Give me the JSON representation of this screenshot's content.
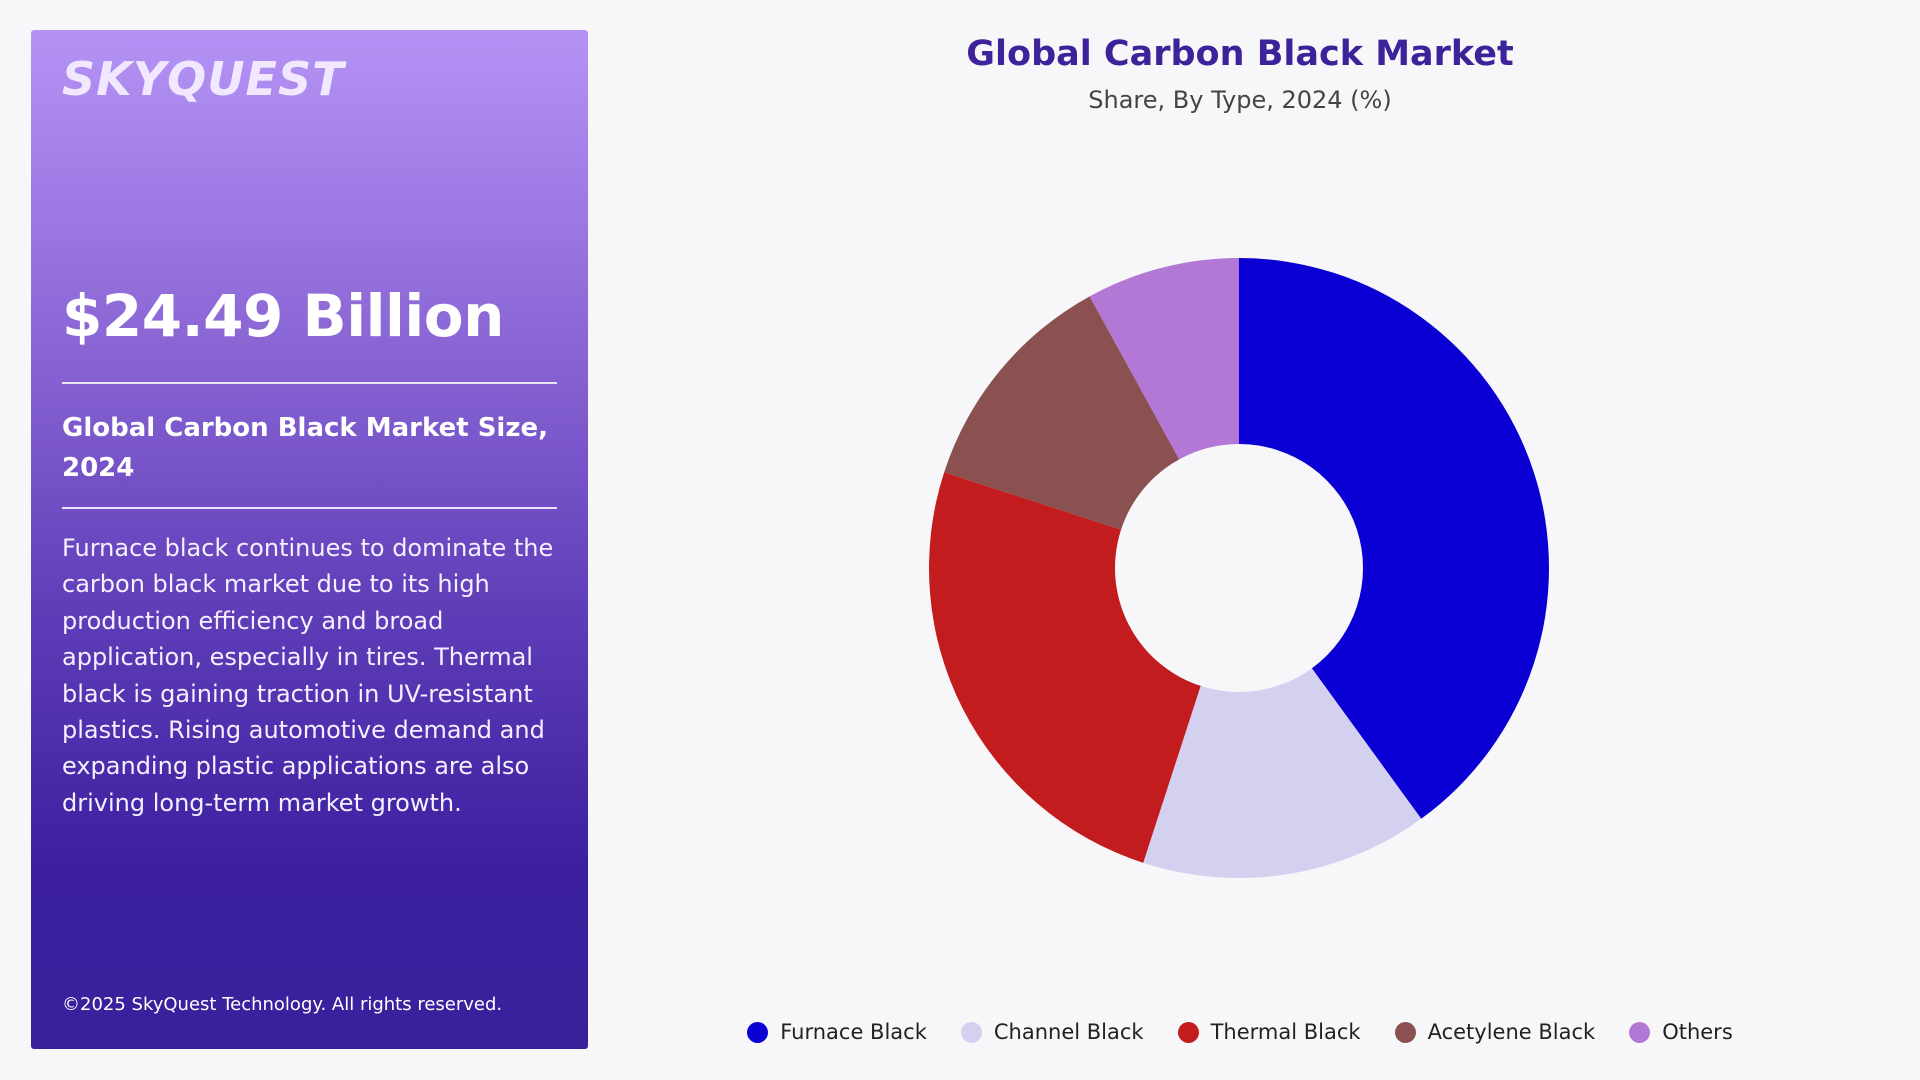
{
  "brand": {
    "logo_text": "SKYQUEST"
  },
  "panel": {
    "market_value": "$24.49 Billion",
    "market_size_title": "Global Carbon Black Market Size, 2024",
    "description": "Furnace black continues to dominate the carbon black market due to its high production efficiency and broad application, especially in tires. Thermal black is gaining traction in UV-resistant plastics. Rising automotive demand and expanding plastic applications are also driving long-term market growth.",
    "copyright": "©2025 SkyQuest Technology. All rights reserved."
  },
  "chart_data": {
    "type": "pie",
    "donut": true,
    "title": "Global Carbon Black Market",
    "subtitle": "Share, By Type, 2024 (%)",
    "categories": [
      "Furnace Black",
      "Channel Black",
      "Thermal Black",
      "Acetylene Black",
      "Others"
    ],
    "values": [
      40,
      15,
      25,
      12,
      8
    ],
    "colors": [
      "#0b00d4",
      "#d3d1ef",
      "#c31c1e",
      "#8b5150",
      "#b377d5"
    ],
    "legend_position": "bottom",
    "start_angle": "top",
    "direction": "clockwise"
  }
}
